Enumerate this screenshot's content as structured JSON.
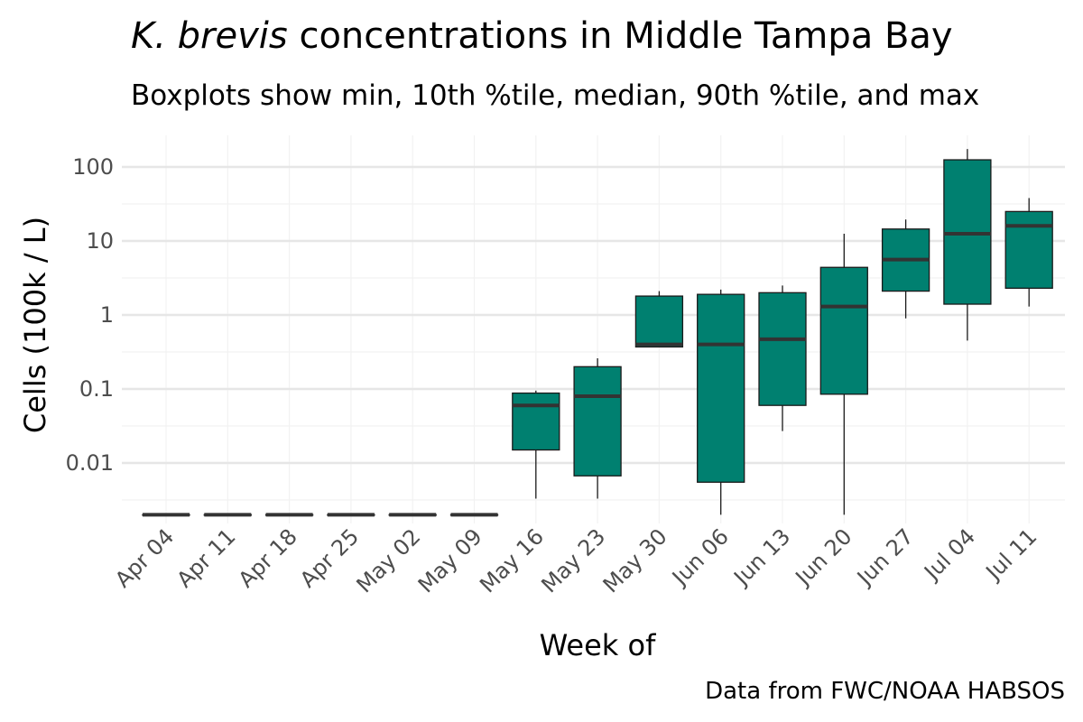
{
  "title_species": "K. brevis",
  "title_rest": " concentrations in Middle Tampa Bay",
  "subtitle": "Boxplots show min, 10th %tile, median, 90th %tile, and max",
  "caption": "Data from FWC/NOAA HABSOS",
  "colors": {
    "box_fill": "#008070",
    "box_stroke": "#1a1a1a",
    "median": "#333333",
    "grid_major": "#e6e6e6",
    "grid_minor": "#f2f2f2"
  },
  "chart_data": {
    "type": "boxplot",
    "xlabel": "Week of",
    "ylabel": "Cells (100k / L)",
    "y_scale": "log10",
    "ylim": [
      0.0015,
      200
    ],
    "y_ticks": [
      0.01,
      0.1,
      1,
      10,
      100
    ],
    "y_tick_labels": [
      "0.01",
      "0.1",
      "1",
      "10",
      "100"
    ],
    "grid": true,
    "categories": [
      "Apr 04",
      "Apr 11",
      "Apr 18",
      "Apr 25",
      "May 02",
      "May 09",
      "May 16",
      "May 23",
      "May 30",
      "Jun 06",
      "Jun 13",
      "Jun 20",
      "Jun 27",
      "Jul 04",
      "Jul 11"
    ],
    "boxes": [
      {
        "min": 0.002,
        "p10": 0.002,
        "median": 0.002,
        "p90": 0.002,
        "max": 0.002
      },
      {
        "min": 0.002,
        "p10": 0.002,
        "median": 0.002,
        "p90": 0.002,
        "max": 0.002
      },
      {
        "min": 0.002,
        "p10": 0.002,
        "median": 0.002,
        "p90": 0.002,
        "max": 0.002
      },
      {
        "min": 0.002,
        "p10": 0.002,
        "median": 0.002,
        "p90": 0.002,
        "max": 0.002
      },
      {
        "min": 0.002,
        "p10": 0.002,
        "median": 0.002,
        "p90": 0.002,
        "max": 0.002
      },
      {
        "min": 0.002,
        "p10": 0.002,
        "median": 0.002,
        "p90": 0.002,
        "max": 0.002
      },
      {
        "min": 0.0033,
        "p10": 0.015,
        "median": 0.06,
        "p90": 0.088,
        "max": 0.095
      },
      {
        "min": 0.0033,
        "p10": 0.0067,
        "median": 0.08,
        "p90": 0.2,
        "max": 0.26
      },
      {
        "min": 0.37,
        "p10": 0.37,
        "median": 0.4,
        "p90": 1.8,
        "max": 2.1
      },
      {
        "min": 0.002,
        "p10": 0.0055,
        "median": 0.4,
        "p90": 1.9,
        "max": 2.2
      },
      {
        "min": 0.027,
        "p10": 0.06,
        "median": 0.47,
        "p90": 2.0,
        "max": 2.5
      },
      {
        "min": 0.002,
        "p10": 0.085,
        "median": 1.3,
        "p90": 4.4,
        "max": 12.5
      },
      {
        "min": 0.9,
        "p10": 2.1,
        "median": 5.6,
        "p90": 14.5,
        "max": 19.5
      },
      {
        "min": 0.45,
        "p10": 1.4,
        "median": 12.5,
        "p90": 125,
        "max": 175
      },
      {
        "min": 1.3,
        "p10": 2.3,
        "median": 16,
        "p90": 25,
        "max": 38
      }
    ]
  }
}
